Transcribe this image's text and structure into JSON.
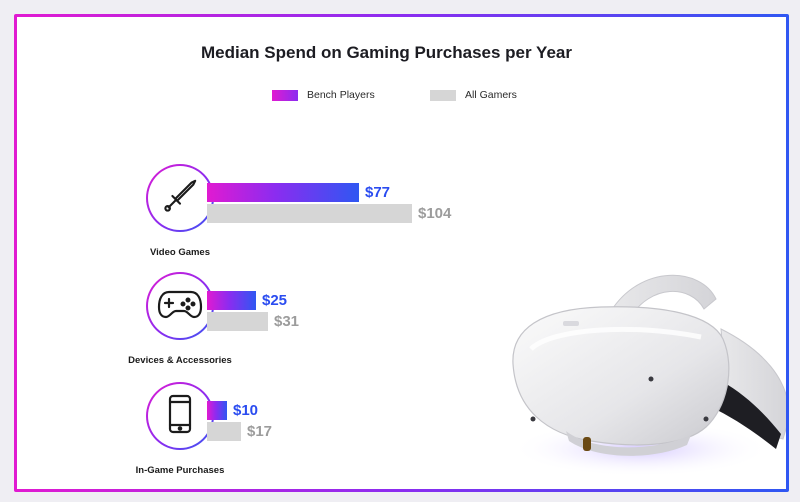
{
  "chart_data": {
    "type": "bar",
    "orientation": "horizontal",
    "title": "Median Spend on Gaming Purchases per Year",
    "categories": [
      "Video Games",
      "Devices & Accessories",
      "In-Game Purchases"
    ],
    "category_icons": [
      "sword-icon",
      "gamepad-icon",
      "phone-icon"
    ],
    "series": [
      {
        "name": "Bench Players",
        "values": [
          77,
          25,
          10
        ],
        "value_labels": [
          "$77",
          "$25",
          "$10"
        ],
        "color": "#e11ad1"
      },
      {
        "name": "All Gamers",
        "values": [
          104,
          31,
          17
        ],
        "value_labels": [
          "$104",
          "$31",
          "$17"
        ],
        "color": "#d6d6d6"
      }
    ],
    "legend_position": "top",
    "xlim": [
      0,
      104
    ],
    "grid": false
  },
  "theme": {
    "gradient_start": "#e11ad1",
    "gradient_mid": "#8b2cf0",
    "gradient_end": "#2f57f2",
    "bench_value_color": "#2a4cf0",
    "all_value_color": "#9c9c9c"
  }
}
